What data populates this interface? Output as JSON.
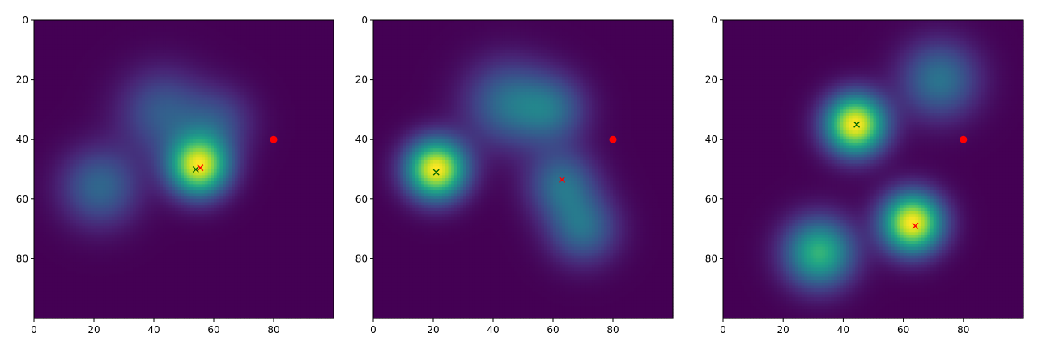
{
  "chart_data": [
    {
      "type": "heatmap",
      "colormap": "viridis",
      "xlim": [
        0,
        100
      ],
      "ylim": [
        100,
        0
      ],
      "xticks": [
        "0",
        "20",
        "40",
        "60",
        "80"
      ],
      "yticks": [
        "0",
        "20",
        "40",
        "60",
        "80"
      ],
      "grid": false,
      "blobs": [
        {
          "x": 55,
          "y": 49,
          "sigma": 7,
          "amp": 1.0
        },
        {
          "x": 22,
          "y": 56,
          "sigma": 9,
          "amp": 0.35
        },
        {
          "x": 43,
          "y": 31,
          "sigma": 10,
          "amp": 0.3
        },
        {
          "x": 62,
          "y": 34,
          "sigma": 8,
          "amp": 0.22
        }
      ],
      "target_point": {
        "x": 80,
        "y": 40,
        "color": "#ff0000"
      },
      "red_marker": {
        "x": 55.5,
        "y": 49.5,
        "color": "#ff0000"
      },
      "green_marker": {
        "x": 54,
        "y": 50,
        "color": "#006400"
      }
    },
    {
      "type": "heatmap",
      "colormap": "viridis",
      "xlim": [
        0,
        100
      ],
      "ylim": [
        100,
        0
      ],
      "xticks": [
        "0",
        "20",
        "40",
        "60",
        "80"
      ],
      "yticks": [
        "0",
        "20",
        "40",
        "60",
        "80"
      ],
      "grid": false,
      "blobs": [
        {
          "x": 21,
          "y": 50,
          "sigma": 7,
          "amp": 1.0
        },
        {
          "x": 45,
          "y": 28,
          "sigma": 10,
          "amp": 0.35
        },
        {
          "x": 60,
          "y": 30,
          "sigma": 8,
          "amp": 0.3
        },
        {
          "x": 63,
          "y": 55,
          "sigma": 8,
          "amp": 0.35
        },
        {
          "x": 70,
          "y": 70,
          "sigma": 8,
          "amp": 0.35
        }
      ],
      "target_point": {
        "x": 80,
        "y": 40,
        "color": "#ff0000"
      },
      "red_marker": {
        "x": 63,
        "y": 53.5,
        "color": "#ff0000"
      },
      "green_marker": {
        "x": 21,
        "y": 51,
        "color": "#006400"
      }
    },
    {
      "type": "heatmap",
      "colormap": "viridis",
      "xlim": [
        0,
        100
      ],
      "ylim": [
        100,
        0
      ],
      "xticks": [
        "0",
        "20",
        "40",
        "60",
        "80"
      ],
      "yticks": [
        "0",
        "20",
        "40",
        "60",
        "80"
      ],
      "grid": false,
      "blobs": [
        {
          "x": 44,
          "y": 35,
          "sigma": 7,
          "amp": 1.0
        },
        {
          "x": 63,
          "y": 68,
          "sigma": 7,
          "amp": 1.0
        },
        {
          "x": 32,
          "y": 78,
          "sigma": 8,
          "amp": 0.65
        },
        {
          "x": 72,
          "y": 20,
          "sigma": 9,
          "amp": 0.38
        }
      ],
      "target_point": {
        "x": 80,
        "y": 40,
        "color": "#ff0000"
      },
      "red_marker": {
        "x": 64,
        "y": 69,
        "color": "#ff0000"
      },
      "green_marker": {
        "x": 44.5,
        "y": 35,
        "color": "#006400"
      }
    }
  ]
}
